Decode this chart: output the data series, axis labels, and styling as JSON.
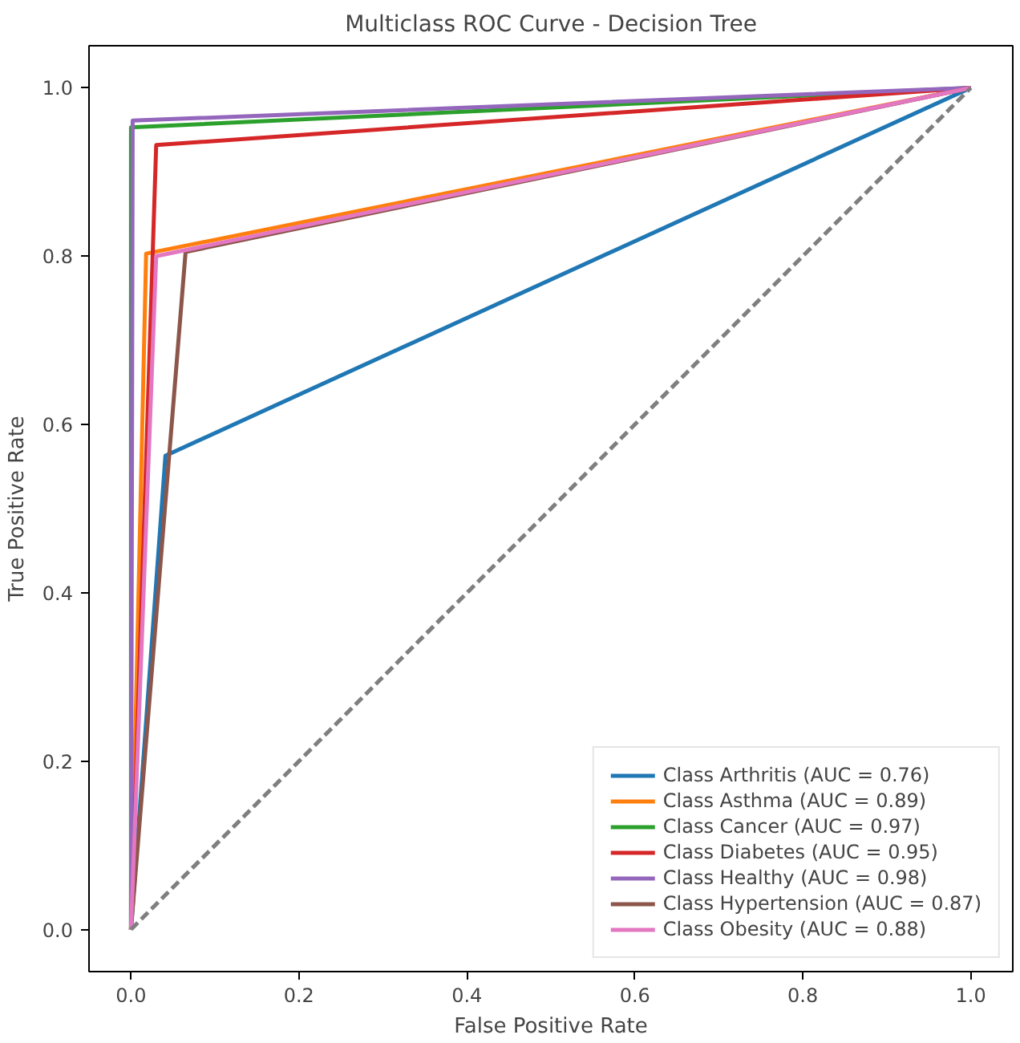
{
  "chart_data": {
    "type": "line",
    "title": "Multiclass ROC Curve - Decision Tree",
    "xlabel": "False Positive Rate",
    "ylabel": "True Positive Rate",
    "xlim": [
      -0.05,
      1.05
    ],
    "ylim": [
      -0.05,
      1.05
    ],
    "xticks": [
      {
        "value": 0,
        "label": "0.0"
      },
      0.2,
      0.4,
      0.6,
      0.8,
      {
        "value": 1,
        "label": "1.0"
      }
    ],
    "yticks": [
      {
        "value": 0,
        "label": "0.0"
      },
      0.2,
      0.4,
      0.6,
      0.8,
      {
        "value": 1,
        "label": "1.0"
      }
    ],
    "series": [
      {
        "name": "Class Arthritis (AUC = 0.76)",
        "color": "#1f77b4",
        "x": [
          0,
          0.041,
          1
        ],
        "values": [
          0,
          0.563,
          1
        ]
      },
      {
        "name": "Class Asthma (AUC = 0.89)",
        "color": "#ff7f0e",
        "x": [
          0,
          0.018,
          1
        ],
        "values": [
          0,
          0.803,
          1
        ]
      },
      {
        "name": "Class Cancer (AUC = 0.97)",
        "color": "#2ca02c",
        "x": [
          0,
          0.0,
          1
        ],
        "values": [
          0,
          0.953,
          1
        ]
      },
      {
        "name": "Class Diabetes (AUC = 0.95)",
        "color": "#d62728",
        "x": [
          0,
          0.03,
          1
        ],
        "values": [
          0,
          0.932,
          1
        ]
      },
      {
        "name": "Class Healthy (AUC = 0.98)",
        "color": "#9467bd",
        "x": [
          0,
          0.002,
          1
        ],
        "values": [
          0,
          0.961,
          1
        ]
      },
      {
        "name": "Class Hypertension (AUC = 0.87)",
        "color": "#8c564b",
        "x": [
          0,
          0.065,
          1
        ],
        "values": [
          0,
          0.805,
          1
        ]
      },
      {
        "name": "Class Obesity (AUC = 0.88)",
        "color": "#e377c2",
        "x": [
          0,
          0.03,
          1
        ],
        "values": [
          0,
          0.8,
          1
        ]
      },
      {
        "color": "#7f7f7f",
        "x": [
          0,
          1
        ],
        "values": [
          0,
          1
        ],
        "line_style": "dashed"
      }
    ],
    "legend": "bottom right",
    "grid": false,
    "marker": "none"
  }
}
